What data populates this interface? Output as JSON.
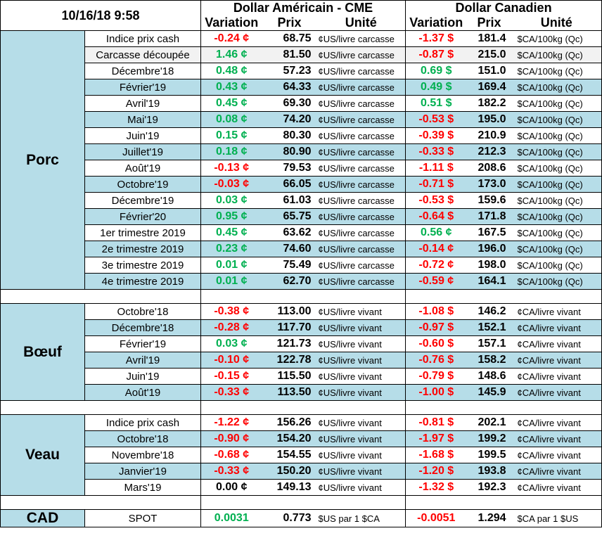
{
  "timestamp": "10/16/18 9:58",
  "headers": {
    "usd_title": "Dollar Américain - CME",
    "cad_title": "Dollar Canadien",
    "variation": "Variation",
    "prix": "Prix",
    "unite": "Unité"
  },
  "colors": {
    "band": "#b6dde8",
    "positive": "#00b050",
    "negative": "#ff0000"
  },
  "sections": [
    {
      "name": "Porc",
      "rows": [
        {
          "label": "Indice prix cash",
          "usd_var": "-0.24 ¢",
          "usd_sign": "neg",
          "usd_prix": "68.75",
          "usd_unit": "¢US/livre carcasse",
          "cad_var": "-1.37 $",
          "cad_sign": "neg",
          "cad_prix": "181.4",
          "cad_unit": "$CA/100kg (Qc)"
        },
        {
          "label": "Carcasse découpée",
          "usd_var": "1.46 ¢",
          "usd_sign": "pos",
          "usd_prix": "81.50",
          "usd_unit": "¢US/livre carcasse",
          "cad_var": "-0.87 $",
          "cad_sign": "neg",
          "cad_prix": "215.0",
          "cad_unit": "$CA/100kg (Qc)"
        },
        {
          "label": "Décembre'18",
          "usd_var": "0.48 ¢",
          "usd_sign": "pos",
          "usd_prix": "57.23",
          "usd_unit": "¢US/livre carcasse",
          "cad_var": "0.69 $",
          "cad_sign": "pos",
          "cad_prix": "151.0",
          "cad_unit": "$CA/100kg (Qc)"
        },
        {
          "label": "Février'19",
          "usd_var": "0.43 ¢",
          "usd_sign": "pos",
          "usd_prix": "64.33",
          "usd_unit": "¢US/livre carcasse",
          "cad_var": "0.49 $",
          "cad_sign": "pos",
          "cad_prix": "169.4",
          "cad_unit": "$CA/100kg (Qc)"
        },
        {
          "label": "Avril'19",
          "usd_var": "0.45 ¢",
          "usd_sign": "pos",
          "usd_prix": "69.30",
          "usd_unit": "¢US/livre carcasse",
          "cad_var": "0.51 $",
          "cad_sign": "pos",
          "cad_prix": "182.2",
          "cad_unit": "$CA/100kg (Qc)"
        },
        {
          "label": "Mai'19",
          "usd_var": "0.08 ¢",
          "usd_sign": "pos",
          "usd_prix": "74.20",
          "usd_unit": "¢US/livre carcasse",
          "cad_var": "-0.53 $",
          "cad_sign": "neg",
          "cad_prix": "195.0",
          "cad_unit": "$CA/100kg (Qc)"
        },
        {
          "label": "Juin'19",
          "usd_var": "0.15 ¢",
          "usd_sign": "pos",
          "usd_prix": "80.30",
          "usd_unit": "¢US/livre carcasse",
          "cad_var": "-0.39 $",
          "cad_sign": "neg",
          "cad_prix": "210.9",
          "cad_unit": "$CA/100kg (Qc)"
        },
        {
          "label": "Juillet'19",
          "usd_var": "0.18 ¢",
          "usd_sign": "pos",
          "usd_prix": "80.90",
          "usd_unit": "¢US/livre carcasse",
          "cad_var": "-0.33 $",
          "cad_sign": "neg",
          "cad_prix": "212.3",
          "cad_unit": "$CA/100kg (Qc)"
        },
        {
          "label": "Août'19",
          "usd_var": "-0.13 ¢",
          "usd_sign": "neg",
          "usd_prix": "79.53",
          "usd_unit": "¢US/livre carcasse",
          "cad_var": "-1.11 $",
          "cad_sign": "neg",
          "cad_prix": "208.6",
          "cad_unit": "$CA/100kg (Qc)"
        },
        {
          "label": "Octobre'19",
          "usd_var": "-0.03 ¢",
          "usd_sign": "neg",
          "usd_prix": "66.05",
          "usd_unit": "¢US/livre carcasse",
          "cad_var": "-0.71 $",
          "cad_sign": "neg",
          "cad_prix": "173.0",
          "cad_unit": "$CA/100kg (Qc)"
        },
        {
          "label": "Décembre'19",
          "usd_var": "0.03 ¢",
          "usd_sign": "pos",
          "usd_prix": "61.03",
          "usd_unit": "¢US/livre carcasse",
          "cad_var": "-0.53 $",
          "cad_sign": "neg",
          "cad_prix": "159.6",
          "cad_unit": "$CA/100kg (Qc)"
        },
        {
          "label": "Février'20",
          "usd_var": "0.95 ¢",
          "usd_sign": "pos",
          "usd_prix": "65.75",
          "usd_unit": "¢US/livre carcasse",
          "cad_var": "-0.64 $",
          "cad_sign": "neg",
          "cad_prix": "171.8",
          "cad_unit": "$CA/100kg (Qc)"
        },
        {
          "label": "1er trimestre 2019",
          "usd_var": "0.45 ¢",
          "usd_sign": "pos",
          "usd_prix": "63.62",
          "usd_unit": "¢US/livre carcasse",
          "cad_var": "0.56 ¢",
          "cad_sign": "pos",
          "cad_prix": "167.5",
          "cad_unit": "$CA/100kg (Qc)"
        },
        {
          "label": "2e trimestre 2019",
          "usd_var": "0.23 ¢",
          "usd_sign": "pos",
          "usd_prix": "74.60",
          "usd_unit": "¢US/livre carcasse",
          "cad_var": "-0.14 ¢",
          "cad_sign": "neg",
          "cad_prix": "196.0",
          "cad_unit": "$CA/100kg (Qc)"
        },
        {
          "label": "3e trimestre 2019",
          "usd_var": "0.01 ¢",
          "usd_sign": "pos",
          "usd_prix": "75.49",
          "usd_unit": "¢US/livre carcasse",
          "cad_var": "-0.72 ¢",
          "cad_sign": "neg",
          "cad_prix": "198.0",
          "cad_unit": "$CA/100kg (Qc)"
        },
        {
          "label": "4e trimestre 2019",
          "usd_var": "0.01 ¢",
          "usd_sign": "pos",
          "usd_prix": "62.70",
          "usd_unit": "¢US/livre carcasse",
          "cad_var": "-0.59 ¢",
          "cad_sign": "neg",
          "cad_prix": "164.1",
          "cad_unit": "$CA/100kg (Qc)"
        }
      ]
    },
    {
      "name": "Bœuf",
      "rows": [
        {
          "label": "Octobre'18",
          "usd_var": "-0.38 ¢",
          "usd_sign": "neg",
          "usd_prix": "113.00",
          "usd_unit": "¢US/livre vivant",
          "cad_var": "-1.08 $",
          "cad_sign": "neg",
          "cad_prix": "146.2",
          "cad_unit": "¢CA/livre vivant"
        },
        {
          "label": "Décembre'18",
          "usd_var": "-0.28 ¢",
          "usd_sign": "neg",
          "usd_prix": "117.70",
          "usd_unit": "¢US/livre vivant",
          "cad_var": "-0.97 $",
          "cad_sign": "neg",
          "cad_prix": "152.1",
          "cad_unit": "¢CA/livre vivant"
        },
        {
          "label": "Février'19",
          "usd_var": "0.03 ¢",
          "usd_sign": "pos",
          "usd_prix": "121.73",
          "usd_unit": "¢US/livre vivant",
          "cad_var": "-0.60 $",
          "cad_sign": "neg",
          "cad_prix": "157.1",
          "cad_unit": "¢CA/livre vivant"
        },
        {
          "label": "Avril'19",
          "usd_var": "-0.10 ¢",
          "usd_sign": "neg",
          "usd_prix": "122.78",
          "usd_unit": "¢US/livre vivant",
          "cad_var": "-0.76 $",
          "cad_sign": "neg",
          "cad_prix": "158.2",
          "cad_unit": "¢CA/livre vivant"
        },
        {
          "label": "Juin'19",
          "usd_var": "-0.15 ¢",
          "usd_sign": "neg",
          "usd_prix": "115.50",
          "usd_unit": "¢US/livre vivant",
          "cad_var": "-0.79 $",
          "cad_sign": "neg",
          "cad_prix": "148.6",
          "cad_unit": "¢CA/livre vivant"
        },
        {
          "label": "Août'19",
          "usd_var": "-0.33 ¢",
          "usd_sign": "neg",
          "usd_prix": "113.50",
          "usd_unit": "¢US/livre vivant",
          "cad_var": "-1.00 $",
          "cad_sign": "neg",
          "cad_prix": "145.9",
          "cad_unit": "¢CA/livre vivant"
        }
      ]
    },
    {
      "name": "Veau",
      "rows": [
        {
          "label": "Indice prix cash",
          "usd_var": "-1.22 ¢",
          "usd_sign": "neg",
          "usd_prix": "156.26",
          "usd_unit": "¢US/livre vivant",
          "cad_var": "-0.81 $",
          "cad_sign": "neg",
          "cad_prix": "202.1",
          "cad_unit": "¢CA/livre vivant"
        },
        {
          "label": "Octobre'18",
          "usd_var": "-0.90 ¢",
          "usd_sign": "neg",
          "usd_prix": "154.20",
          "usd_unit": "¢US/livre vivant",
          "cad_var": "-1.97 $",
          "cad_sign": "neg",
          "cad_prix": "199.2",
          "cad_unit": "¢CA/livre vivant"
        },
        {
          "label": "Novembre'18",
          "usd_var": "-0.68 ¢",
          "usd_sign": "neg",
          "usd_prix": "154.55",
          "usd_unit": "¢US/livre vivant",
          "cad_var": "-1.68 $",
          "cad_sign": "neg",
          "cad_prix": "199.5",
          "cad_unit": "¢CA/livre vivant"
        },
        {
          "label": "Janvier'19",
          "usd_var": "-0.33 ¢",
          "usd_sign": "neg",
          "usd_prix": "150.20",
          "usd_unit": "¢US/livre vivant",
          "cad_var": "-1.20 $",
          "cad_sign": "neg",
          "cad_prix": "193.8",
          "cad_unit": "¢CA/livre vivant"
        },
        {
          "label": "Mars'19",
          "usd_var": "0.00 ¢",
          "usd_sign": "zero",
          "usd_prix": "149.13",
          "usd_unit": "¢US/livre vivant",
          "cad_var": "-1.32 $",
          "cad_sign": "neg",
          "cad_prix": "192.3",
          "cad_unit": "¢CA/livre vivant"
        }
      ]
    }
  ],
  "cad": {
    "name": "CAD",
    "label": "SPOT",
    "usd_var": "0.0031",
    "usd_sign": "pos",
    "usd_prix": "0.773",
    "usd_unit": "$US par 1 $CA",
    "cad_var": "-0.0051",
    "cad_sign": "neg",
    "cad_prix": "1.294",
    "cad_unit": "$CA par 1 $US"
  }
}
